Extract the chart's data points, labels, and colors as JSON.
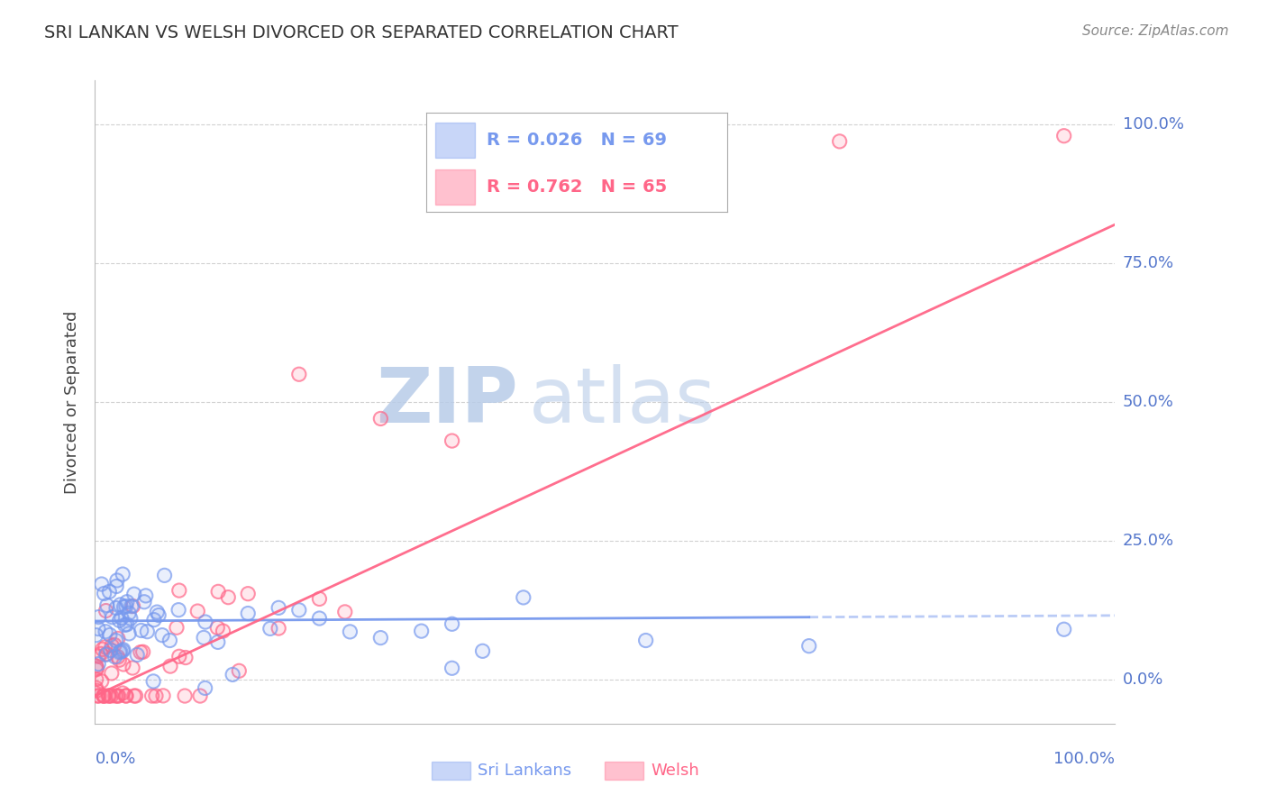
{
  "title": "SRI LANKAN VS WELSH DIVORCED OR SEPARATED CORRELATION CHART",
  "source": "Source: ZipAtlas.com",
  "ylabel": "Divorced or Separated",
  "ytick_values": [
    0,
    25,
    50,
    75,
    100
  ],
  "legend_R1": "0.026",
  "legend_N1": "69",
  "legend_R2": "0.762",
  "legend_N2": "65",
  "sri_lankan_color": "#7799ee",
  "welsh_color": "#ff6688",
  "background_color": "#ffffff",
  "watermark_zip": "ZIP",
  "watermark_atlas": "atlas",
  "watermark_color": "#ccddf5",
  "title_color": "#333333",
  "source_color": "#888888",
  "tick_label_color": "#5577cc",
  "ylabel_color": "#444444",
  "grid_color": "#cccccc",
  "sri_line_y0": 10.5,
  "sri_line_y1": 11.5,
  "welsh_line_y0": -3.0,
  "welsh_line_y1": 82.0,
  "xlim": [
    0,
    100
  ],
  "ylim": [
    -8,
    108
  ]
}
